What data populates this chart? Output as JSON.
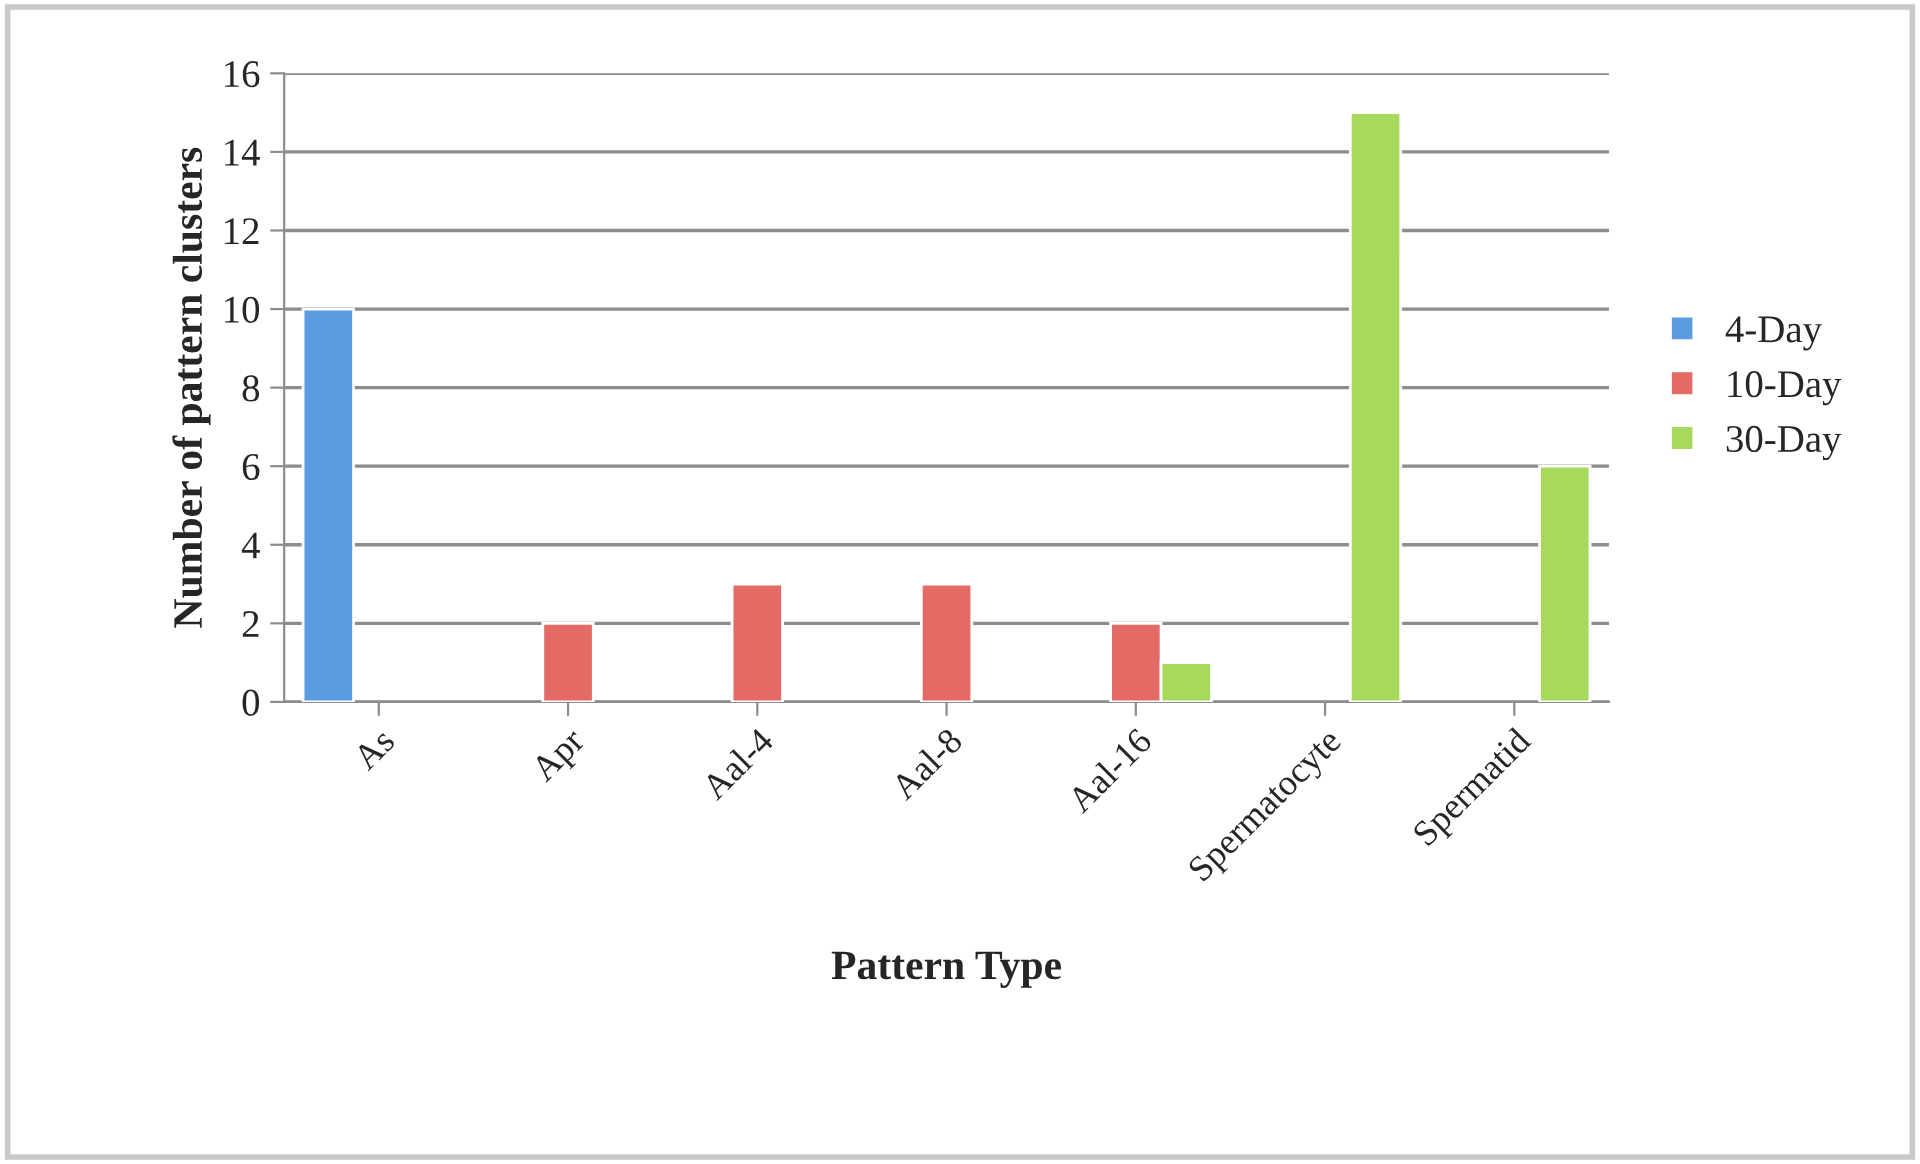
{
  "chart_data": {
    "type": "bar",
    "xlabel": "Pattern Type",
    "ylabel": "Number of pattern clusters",
    "categories": [
      "As",
      "Apr",
      "Aal-4",
      "Aal-8",
      "Aal-16",
      "Spermatocyte",
      "Spermatid"
    ],
    "series": [
      {
        "name": "4-Day",
        "color": "#5b9be0",
        "values": [
          10,
          null,
          null,
          null,
          null,
          null,
          null
        ]
      },
      {
        "name": "10-Day",
        "color": "#e46a66",
        "values": [
          null,
          2,
          3,
          3,
          2,
          null,
          null
        ]
      },
      {
        "name": "30-Day",
        "color": "#a6d95c",
        "values": [
          null,
          null,
          null,
          null,
          1,
          15,
          6
        ]
      }
    ],
    "ylim": [
      0,
      16
    ],
    "yticks": [
      0,
      2,
      4,
      6,
      8,
      10,
      12,
      14,
      16
    ],
    "grid": "y",
    "legend": "right"
  }
}
